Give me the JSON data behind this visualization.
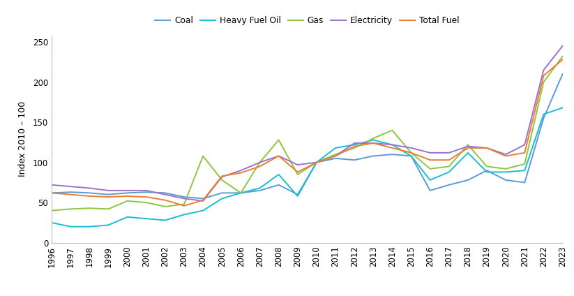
{
  "years": [
    1996,
    1997,
    1998,
    1999,
    2000,
    2001,
    2002,
    2003,
    2004,
    2005,
    2006,
    2007,
    2008,
    2009,
    2010,
    2011,
    2012,
    2013,
    2014,
    2015,
    2016,
    2017,
    2018,
    2019,
    2020,
    2021,
    2022,
    2023
  ],
  "Coal": [
    62,
    63,
    62,
    60,
    62,
    63,
    62,
    57,
    55,
    62,
    62,
    65,
    72,
    60,
    100,
    105,
    103,
    108,
    110,
    108,
    65,
    72,
    78,
    90,
    78,
    75,
    155,
    210
  ],
  "HeavyFuelOil": [
    25,
    20,
    20,
    22,
    32,
    30,
    28,
    35,
    40,
    55,
    62,
    68,
    85,
    58,
    100,
    118,
    122,
    128,
    122,
    108,
    78,
    88,
    112,
    88,
    88,
    90,
    160,
    168
  ],
  "Gas": [
    40,
    42,
    43,
    42,
    52,
    50,
    45,
    48,
    108,
    78,
    62,
    100,
    128,
    85,
    100,
    110,
    118,
    130,
    140,
    112,
    92,
    95,
    122,
    95,
    92,
    98,
    200,
    232
  ],
  "Electricity": [
    72,
    70,
    68,
    65,
    65,
    65,
    60,
    55,
    52,
    82,
    90,
    100,
    108,
    97,
    100,
    108,
    124,
    124,
    122,
    118,
    112,
    112,
    120,
    118,
    110,
    122,
    215,
    245
  ],
  "TotalFuel": [
    62,
    60,
    58,
    57,
    58,
    57,
    53,
    46,
    53,
    83,
    87,
    95,
    108,
    88,
    100,
    108,
    120,
    124,
    118,
    112,
    103,
    103,
    118,
    118,
    108,
    112,
    208,
    228
  ],
  "colors": {
    "Coal": "#5B9BD5",
    "HeavyFuelOil": "#17BECF",
    "Gas": "#8DC63F",
    "Electricity": "#9B72CF",
    "TotalFuel": "#ED7D31"
  },
  "ylabel": "Index 2010 – 100",
  "ylim": [
    0,
    258
  ],
  "yticks": [
    0,
    50,
    100,
    150,
    200,
    250
  ],
  "linewidth": 1.4,
  "tick_fontsize": 8.5,
  "ylabel_fontsize": 9
}
